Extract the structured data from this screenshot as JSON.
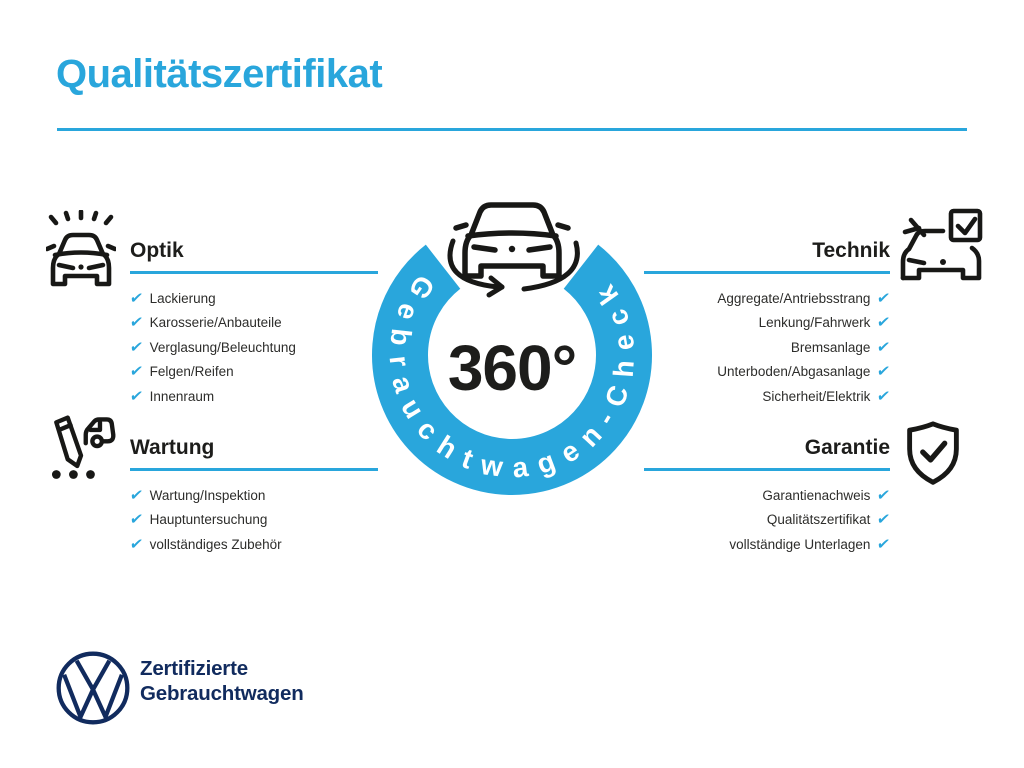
{
  "page": {
    "title": "Qualitätszertifikat"
  },
  "badge": {
    "value": "360°",
    "ring_label": "Gebrauchtwagen-Check",
    "icon": "rotating-car-icon"
  },
  "sections": [
    {
      "id": "optik",
      "title": "Optik",
      "icon": "shiny-car-icon",
      "align": "left",
      "items": [
        "Lackierung",
        "Karosserie/Anbauteile",
        "Verglasung/Beleuchtung",
        "Felgen/Reifen",
        "Innenraum"
      ]
    },
    {
      "id": "technik",
      "title": "Technik",
      "icon": "car-checkbox-icon",
      "align": "right",
      "items": [
        "Aggregate/Antriebsstrang",
        "Lenkung/Fahrwerk",
        "Bremsanlage",
        "Unterboden/Abgasanlage",
        "Sicherheit/Elektrik"
      ]
    },
    {
      "id": "wartung",
      "title": "Wartung",
      "icon": "service-record-icon",
      "align": "left",
      "items": [
        "Wartung/Inspektion",
        "Hauptuntersuchung",
        "vollständiges Zubehör"
      ]
    },
    {
      "id": "garantie",
      "title": "Garantie",
      "icon": "shield-check-icon",
      "align": "right",
      "items": [
        "Garantienachweis",
        "Qualitätszertifikat",
        "vollständige Unterlagen"
      ]
    }
  ],
  "footer": {
    "logo": "vw-logo",
    "line1": "Zertifizierte",
    "line2": "Gebrauchtwagen"
  },
  "colors": {
    "accent": "#29a6dc",
    "navy": "#112b5e",
    "ink": "#1d1d1b"
  }
}
